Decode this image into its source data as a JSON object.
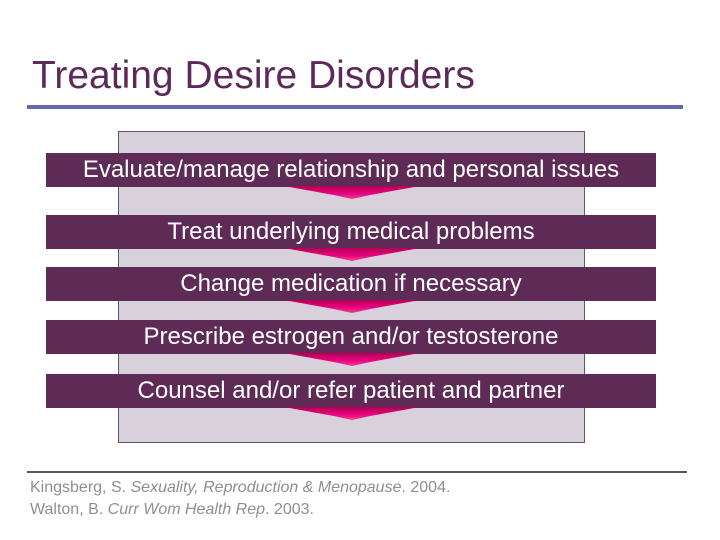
{
  "slide": {
    "title": "Treating Desire Disorders",
    "flow": {
      "steps": [
        "Evaluate/manage relationship and personal issues",
        "Treat underlying medical problems",
        "Change medication if necessary",
        "Prescribe estrogen and/or testosterone",
        "Counsel and/or refer patient and partner"
      ],
      "arrow_icon": "chevron-down"
    },
    "citations": [
      {
        "prefix": "Kingsberg, S. ",
        "source": "Sexuality, Reproduction & Menopause",
        "suffix": ". 2004."
      },
      {
        "prefix": "Walton, B. ",
        "source": "Curr Wom Health Rep",
        "suffix": ". 2003."
      }
    ],
    "colors": {
      "title_text": "#5c2a59",
      "title_underline": "#6367ab",
      "step_bar_fill": "#5d2b56",
      "step_bar_text": "#ffffff",
      "panel_fill": "#d8d1dc",
      "panel_border": "#60596a",
      "arrow_magenta": "#e8007e",
      "citation_text": "#8f8f8f",
      "citation_rule": "#56555e"
    }
  }
}
